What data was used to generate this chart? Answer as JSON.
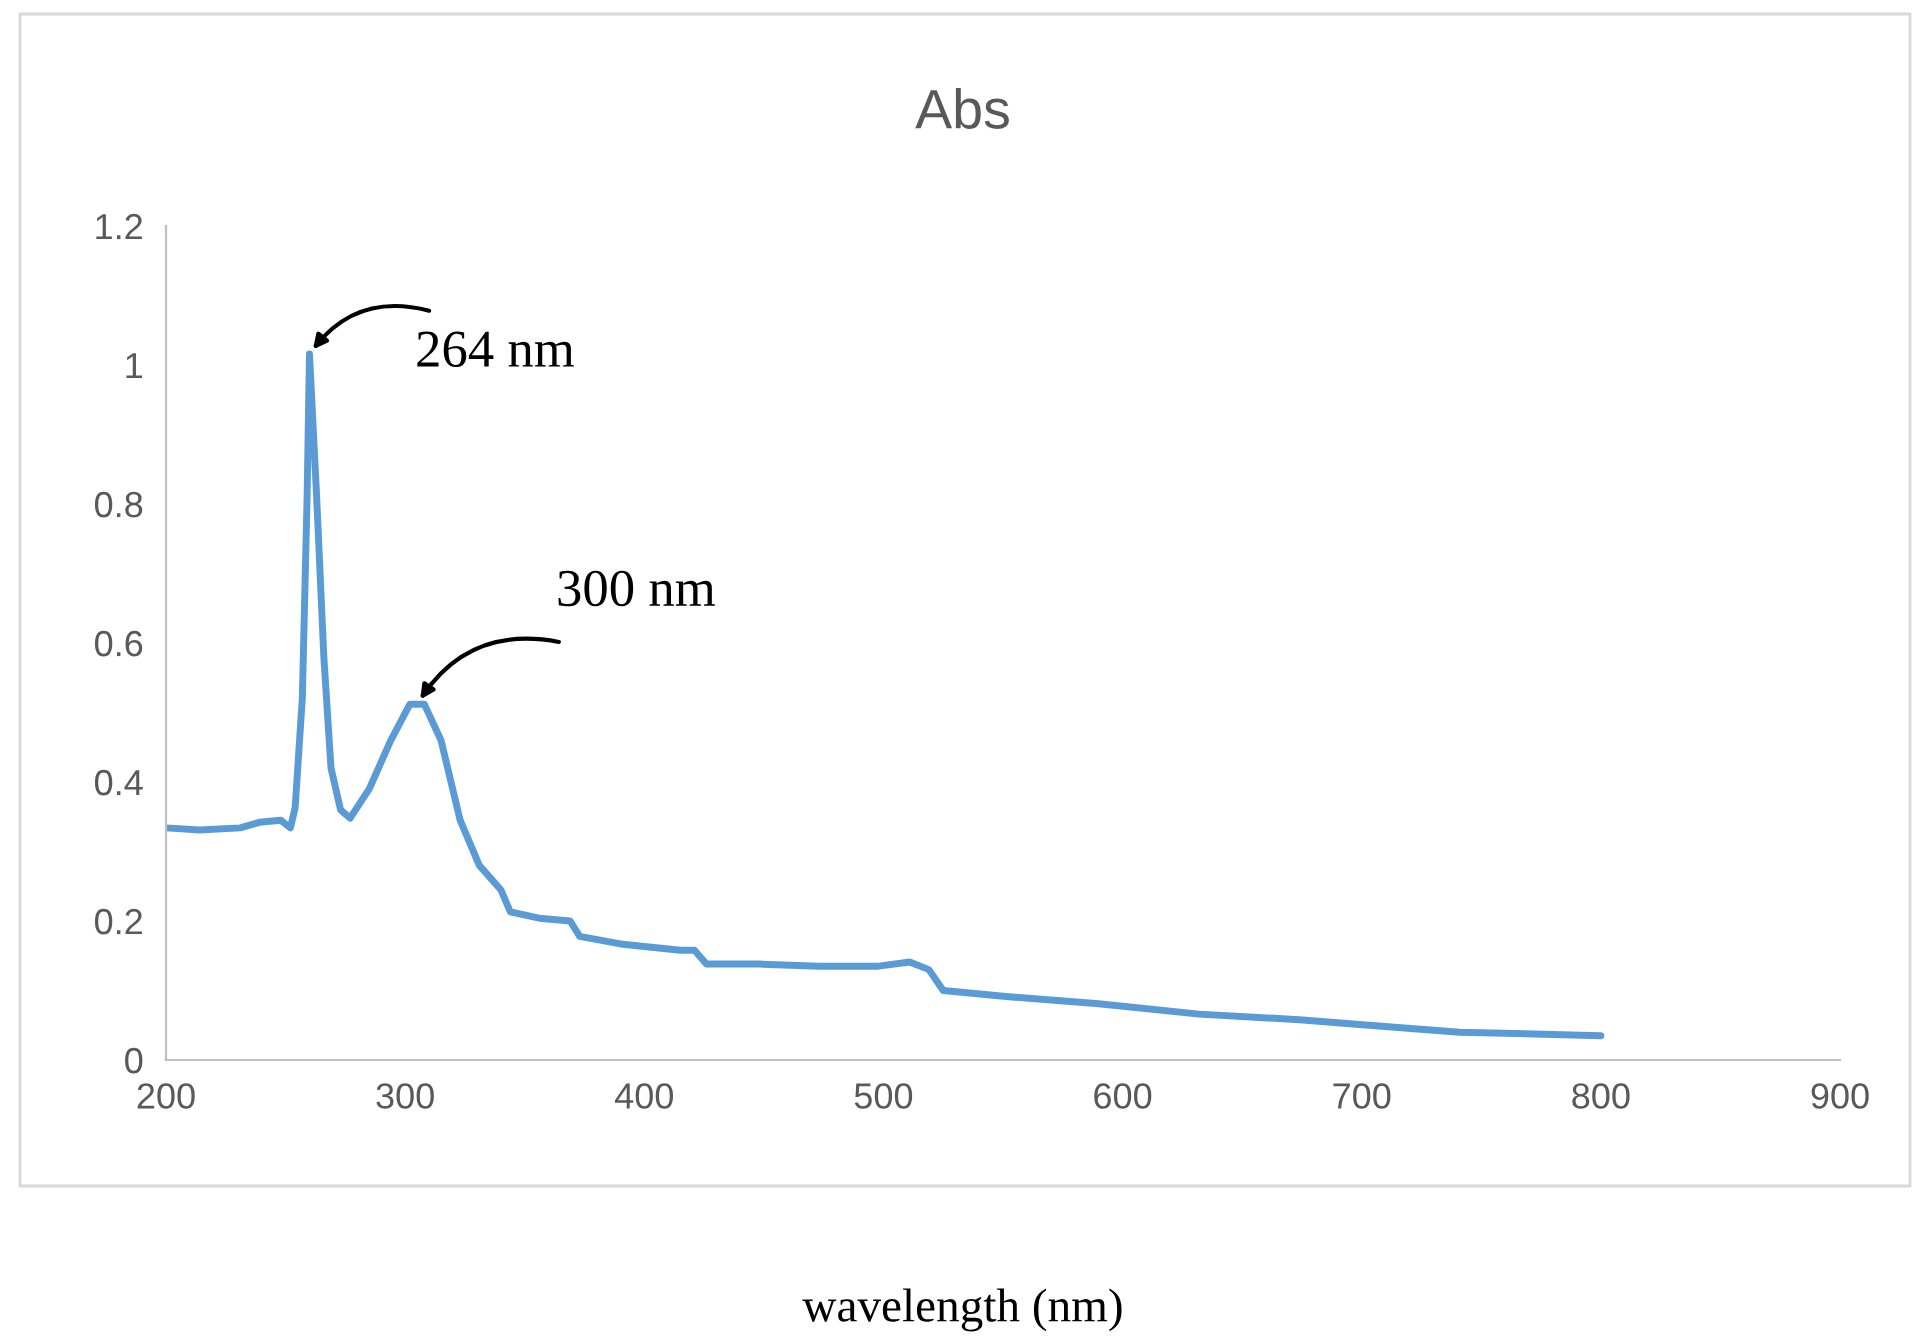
{
  "chart_data": {
    "type": "line",
    "title": "Abs",
    "xlabel": "wavelength (nm)",
    "x": [
      200,
      214,
      231,
      239,
      248,
      252,
      254,
      257,
      259,
      260,
      263,
      266,
      269,
      273,
      277,
      285,
      294,
      302,
      308,
      315,
      323,
      331,
      340,
      344,
      356,
      369,
      373,
      390,
      415,
      421,
      426,
      448,
      473,
      498,
      511,
      519,
      525,
      549,
      590,
      632,
      674,
      707,
      741,
      800
    ],
    "series": [
      {
        "color": "#5b9bd5",
        "values": [
          0.334,
          0.331,
          0.334,
          0.342,
          0.345,
          0.334,
          0.363,
          0.52,
          0.81,
          1.016,
          0.81,
          0.58,
          0.42,
          0.36,
          0.348,
          0.39,
          0.46,
          0.512,
          0.512,
          0.46,
          0.345,
          0.28,
          0.245,
          0.213,
          0.204,
          0.2,
          0.178,
          0.167,
          0.158,
          0.158,
          0.138,
          0.138,
          0.135,
          0.135,
          0.141,
          0.13,
          0.1,
          0.092,
          0.081,
          0.066,
          0.058,
          0.049,
          0.04,
          0.035
        ]
      }
    ],
    "xlim": [
      200,
      900
    ],
    "xticks": [
      200,
      300,
      400,
      500,
      600,
      700,
      800,
      900
    ],
    "ylim": [
      0,
      1.2
    ],
    "yticks": [
      0,
      0.2,
      0.4,
      0.6,
      0.8,
      1,
      1.2
    ],
    "grid": false,
    "legend": false,
    "marker": "none",
    "line_style": "solid",
    "annotations": [
      {
        "text": "264 nm",
        "x": 260,
        "y": 1.016
      },
      {
        "text": "300 nm",
        "x": 305,
        "y": 0.512
      }
    ]
  }
}
